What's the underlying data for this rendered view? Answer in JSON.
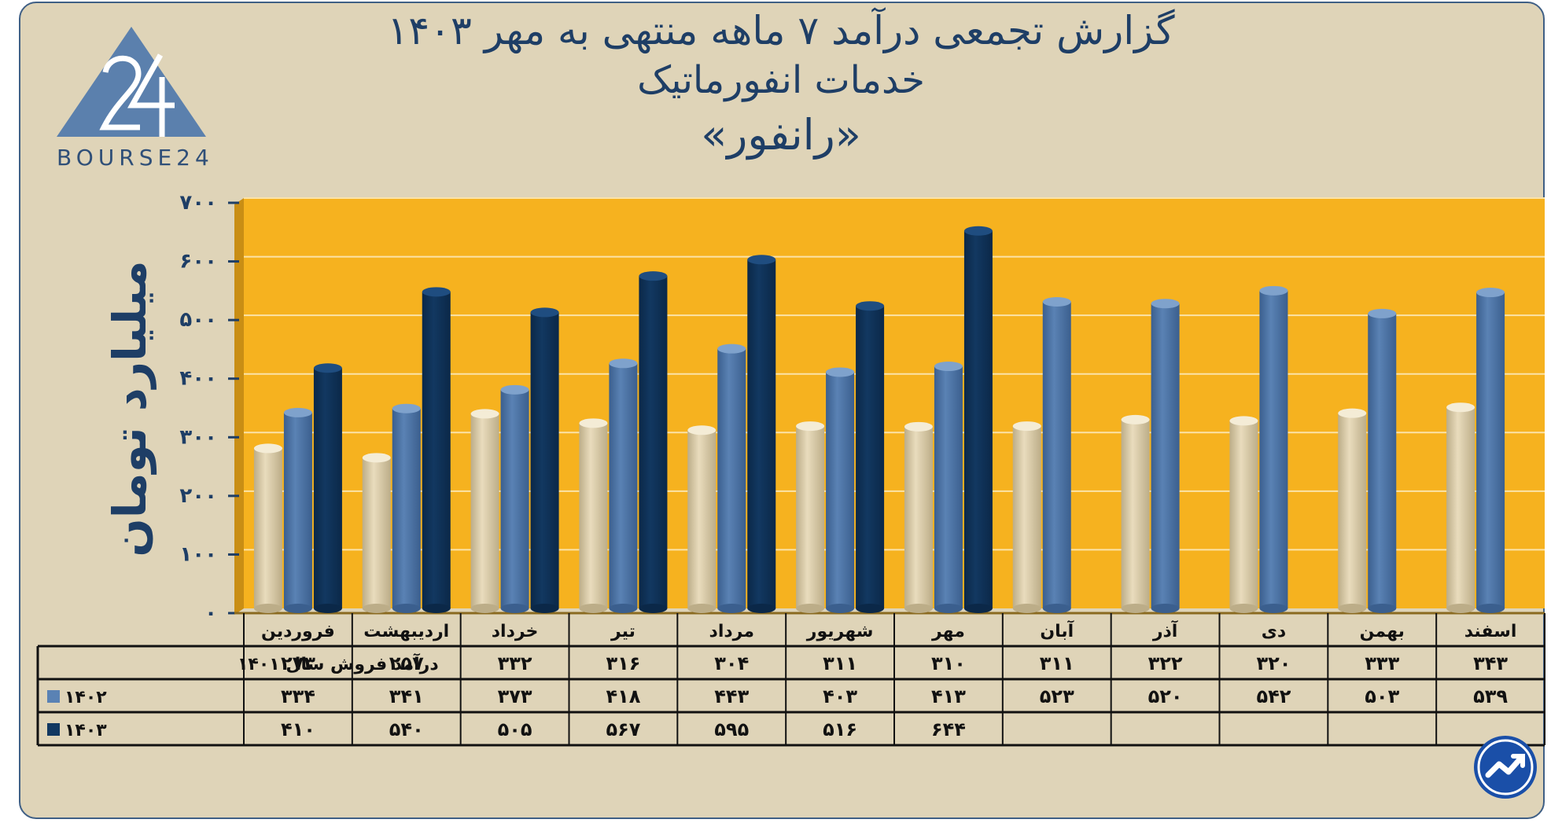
{
  "title": {
    "line1": "گزارش تجمعی درآمد ۷ ماهه منتهی به مهر ۱۴۰۳",
    "line2": "خدمات انفورماتیک",
    "line3": "«رانفور»"
  },
  "logo": {
    "text": "BOURSE24",
    "mark": "24"
  },
  "colors": {
    "plot_bg": "#f6b21f",
    "frame_bg": "#dfd4b8",
    "s1401": "#e9dcbd",
    "s1402": "#5a82b4",
    "s1403": "#123861",
    "text": "#1e3e66"
  },
  "chart_data": {
    "type": "bar",
    "title": "گزارش تجمعی درآمد ۷ ماهه منتهی به مهر ۱۴۰۳",
    "ylabel": "میلیارد تومان",
    "xlabel": "",
    "ylim": [
      0,
      700
    ],
    "yticks": [
      0,
      100,
      200,
      300,
      400,
      500,
      600,
      700
    ],
    "ytick_labels": [
      "۰",
      "۱۰۰",
      "۲۰۰",
      "۳۰۰",
      "۴۰۰",
      "۵۰۰",
      "۶۰۰",
      "۷۰۰"
    ],
    "categories": [
      "فروردین",
      "اردیبهشت",
      "خرداد",
      "تیر",
      "مرداد",
      "شهریور",
      "مهر",
      "آبان",
      "آذر",
      "دی",
      "بهمن",
      "اسفند"
    ],
    "series": [
      {
        "name": "درآمد فروش سال ۱۴۰۱",
        "color_key": "s1401",
        "values": [
          273,
          257,
          332,
          316,
          304,
          311,
          310,
          311,
          322,
          320,
          333,
          343
        ],
        "labels": [
          "۲۷۳",
          "۲۵۷",
          "۳۳۲",
          "۳۱۶",
          "۳۰۴",
          "۳۱۱",
          "۳۱۰",
          "۳۱۱",
          "۳۲۲",
          "۳۲۰",
          "۳۳۳",
          "۳۴۳"
        ]
      },
      {
        "name": "۱۴۰۲",
        "color_key": "s1402",
        "values": [
          334,
          341,
          373,
          418,
          443,
          403,
          413,
          523,
          520,
          542,
          503,
          539
        ],
        "labels": [
          "۳۳۴",
          "۳۴۱",
          "۳۷۳",
          "۴۱۸",
          "۴۴۳",
          "۴۰۳",
          "۴۱۳",
          "۵۲۳",
          "۵۲۰",
          "۵۴۲",
          "۵۰۳",
          "۵۳۹"
        ]
      },
      {
        "name": "۱۴۰۳",
        "color_key": "s1403",
        "values": [
          410,
          540,
          505,
          567,
          595,
          516,
          644,
          null,
          null,
          null,
          null,
          null
        ],
        "labels": [
          "۴۱۰",
          "۵۴۰",
          "۵۰۵",
          "۵۶۷",
          "۵۹۵",
          "۵۱۶",
          "۶۴۴",
          "",
          "",
          "",
          "",
          ""
        ]
      }
    ]
  }
}
